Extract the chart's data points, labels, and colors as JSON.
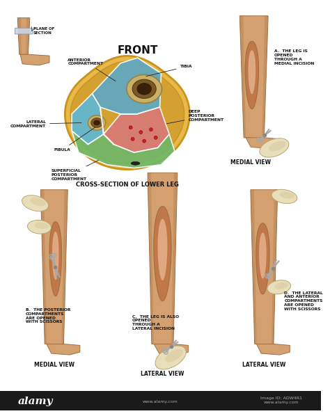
{
  "background_color": "#ffffff",
  "fig_width": 4.74,
  "fig_height": 5.98,
  "dpi": 100,
  "top_label": "FRONT",
  "cross_section_label": "CROSS-SECTION OF LOWER LEG",
  "plane_label": "PLANE OF\nSECTION",
  "compartment_labels": {
    "anterior": "ANTERIOR\nCOMPARTMENT",
    "lateral": "LATERAL\nCOMPARTMENT",
    "deep_posterior": "DEEP\nPOSTERIOR\nCOMPARTMENT",
    "superficial_posterior": "SUPERFICIAL\nPOSTERIOR\nCOMPARTMENT",
    "tibia": "TIBIA",
    "fibula": "FIBULA"
  },
  "panel_labels": {
    "A": "A.  THE LEG IS\nOPENED\nTHROUGH A\nMEDIAL INCISION",
    "B": "B.  THE POSTERIOR\nCOMPARTMENTS\nARE OPENED\nWITH SCISSORS",
    "C": "C.  THE LEG IS ALSO\nOPENED\nTHROUGH A\nLATERAL INCISION",
    "D": "D.  THE LATERAL\nAND ANTERIOR\nCOMPARTMENTS\nARE OPENED\nWITH SCISSORS"
  },
  "view_labels": {
    "top_right": "MEDIAL VIEW",
    "bottom_left": "MEDIAL VIEW",
    "bottom_center": "LATERAL VIEW",
    "bottom_right": "LATERAL VIEW"
  },
  "colors": {
    "outer_ring": "#E8B84B",
    "outer_ring_dark": "#C8941A",
    "anterior_compartment": "#5BA8C8",
    "lateral_compartment": "#5BB8D8",
    "deep_posterior": "#D87878",
    "superficial_posterior": "#6DB86A",
    "tibia_outer": "#C8B068",
    "tibia_inner": "#7A5828",
    "fibula_outer": "#C8B068",
    "fibula_inner": "#7A5828",
    "skin_light": "#D4A070",
    "skin_mid": "#C08858",
    "skin_dark": "#A07040",
    "incision_outer": "#C07848",
    "incision_inner": "#E0A880",
    "incision_deep": "#D09068",
    "glove_light": "#E8DEBA",
    "glove_mid": "#D8C898",
    "glove_dark": "#B8A870",
    "scissors_color": "#A8A8A8",
    "alamy_bg": "#1A1A1A",
    "alamy_text": "#ffffff",
    "label_color": "#111111",
    "line_color": "#222222",
    "white": "#ffffff",
    "vessel_red": "#CC2222",
    "vessel_dark": "#2222AA",
    "small_oval": "#222222",
    "watermark_gray": "#AAAAAA"
  },
  "watermark": "alamy",
  "image_id": "ADW4R1",
  "alamy_url": "www.alamy.com"
}
